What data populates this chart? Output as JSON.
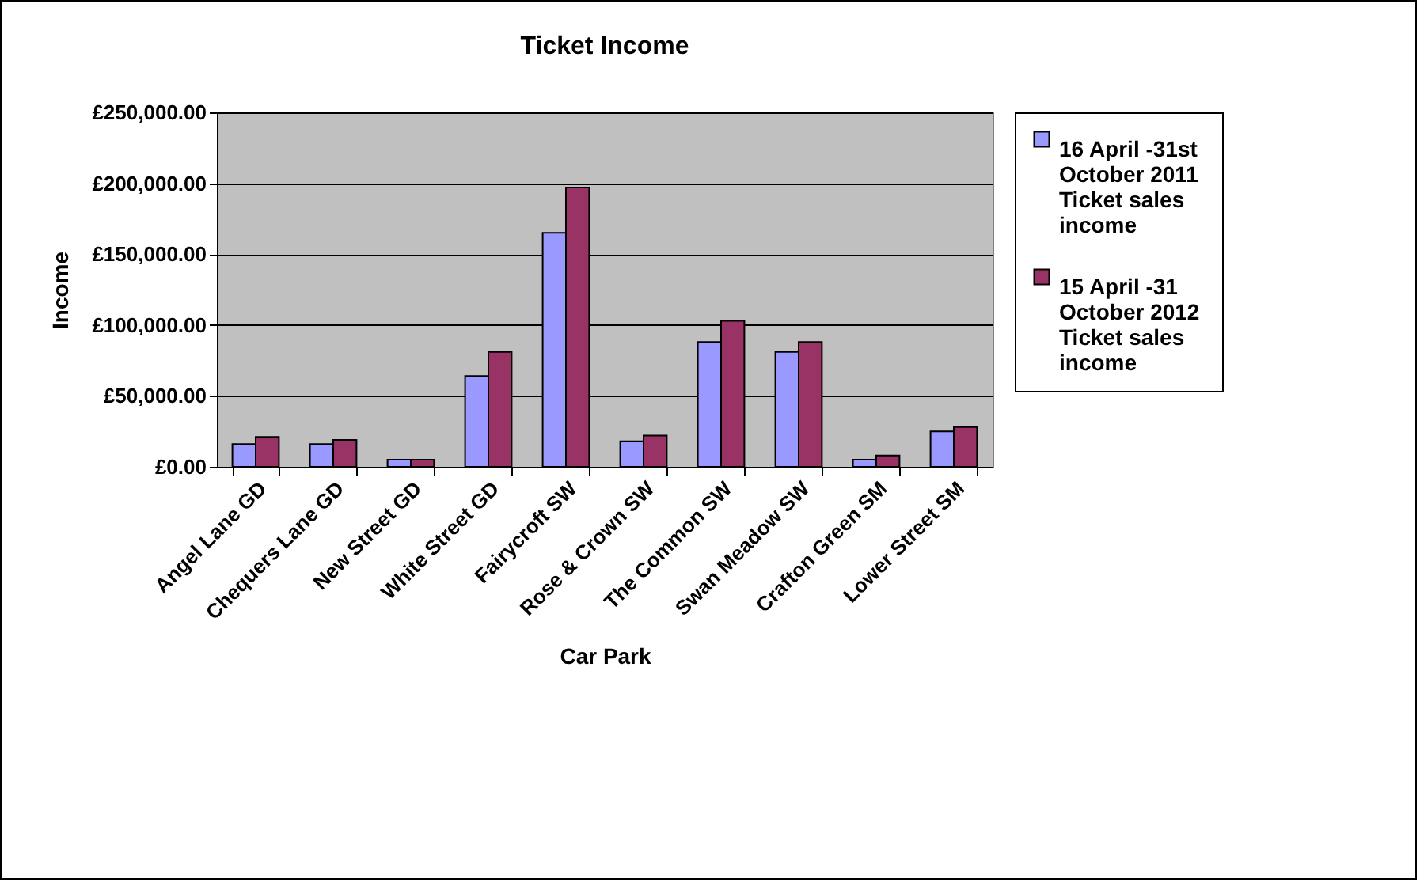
{
  "chart_data": {
    "type": "bar",
    "title": "Ticket Income",
    "xlabel": "Car Park",
    "ylabel": "Income",
    "categories": [
      "Angel Lane GD",
      "Chequers Lane GD",
      "New Street GD",
      "White Street GD",
      "Fairycroft SW",
      "Rose & Crown SW",
      "The Common SW",
      "Swan Meadow SW",
      "Crafton Green SM",
      "Lower Street SM"
    ],
    "series": [
      {
        "name": "16 April -31st October 2011 Ticket sales income",
        "color": "#9999ff",
        "values": [
          16000,
          16000,
          5000,
          64000,
          165000,
          18000,
          88000,
          81000,
          5000,
          25000
        ]
      },
      {
        "name": "15 April -31 October  2012 Ticket sales income",
        "color": "#993366",
        "values": [
          21000,
          19000,
          5000,
          81000,
          197000,
          22000,
          103000,
          88000,
          8000,
          28000
        ]
      }
    ],
    "ylim": [
      0,
      250000
    ],
    "yticks": [
      {
        "value": 0,
        "label": "£0.00"
      },
      {
        "value": 50000,
        "label": "£50,000.00"
      },
      {
        "value": 100000,
        "label": "£100,000.00"
      },
      {
        "value": 150000,
        "label": "£150,000.00"
      },
      {
        "value": 200000,
        "label": "£200,000.00"
      },
      {
        "value": 250000,
        "label": "£250,000.00"
      }
    ],
    "grid": "y",
    "legend": "right"
  }
}
